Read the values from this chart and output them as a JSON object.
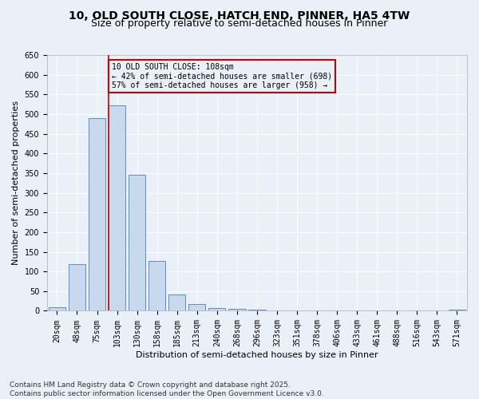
{
  "title_line1": "10, OLD SOUTH CLOSE, HATCH END, PINNER, HA5 4TW",
  "title_line2": "Size of property relative to semi-detached houses in Pinner",
  "xlabel": "Distribution of semi-detached houses by size in Pinner",
  "ylabel": "Number of semi-detached properties",
  "categories": [
    "20sqm",
    "48sqm",
    "75sqm",
    "103sqm",
    "130sqm",
    "158sqm",
    "185sqm",
    "213sqm",
    "240sqm",
    "268sqm",
    "296sqm",
    "323sqm",
    "351sqm",
    "378sqm",
    "406sqm",
    "433sqm",
    "461sqm",
    "488sqm",
    "516sqm",
    "543sqm",
    "571sqm"
  ],
  "values": [
    10,
    119,
    490,
    522,
    345,
    127,
    42,
    18,
    7,
    5,
    3,
    0,
    0,
    0,
    0,
    0,
    0,
    0,
    0,
    0,
    3
  ],
  "bar_color": "#c9d9ed",
  "bar_edge_color": "#5b8ec4",
  "property_bar_index": 3,
  "vline_color": "#cc0000",
  "annotation_text": "10 OLD SOUTH CLOSE: 108sqm\n← 42% of semi-detached houses are smaller (698)\n57% of semi-detached houses are larger (958) →",
  "annotation_box_color": "#cc0000",
  "ylim": [
    0,
    650
  ],
  "yticks": [
    0,
    50,
    100,
    150,
    200,
    250,
    300,
    350,
    400,
    450,
    500,
    550,
    600,
    650
  ],
  "footnote": "Contains HM Land Registry data © Crown copyright and database right 2025.\nContains public sector information licensed under the Open Government Licence v3.0.",
  "bg_color": "#eaf0f8",
  "grid_color": "#ffffff",
  "title_fontsize": 10,
  "subtitle_fontsize": 9,
  "axis_label_fontsize": 8,
  "tick_fontsize": 7,
  "footnote_fontsize": 6.5
}
